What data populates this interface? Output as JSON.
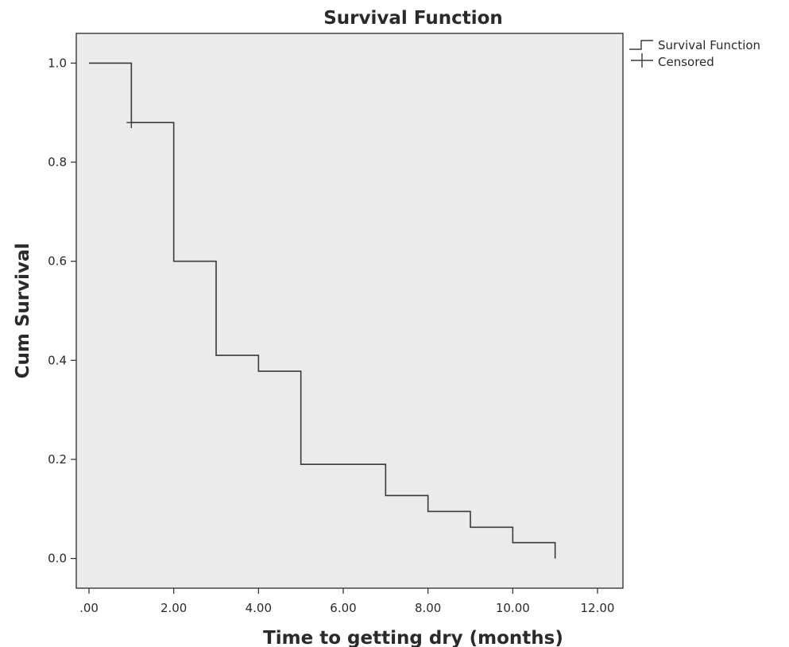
{
  "chart_data": {
    "type": "line",
    "title": "Survival Function",
    "xlabel": "Time to getting dry (months)",
    "ylabel": "Cum Survival",
    "xlim": [
      -0.3,
      12.6
    ],
    "ylim": [
      -0.06,
      1.06
    ],
    "x_ticks": [
      0,
      2,
      4,
      6,
      8,
      10,
      12
    ],
    "x_tick_labels": [
      ".00",
      "2.00",
      "4.00",
      "6.00",
      "8.00",
      "10.00",
      "12.00"
    ],
    "y_ticks": [
      0.0,
      0.2,
      0.4,
      0.6,
      0.8,
      1.0
    ],
    "y_tick_labels": [
      "0.0",
      "0.2",
      "0.4",
      "0.6",
      "0.8",
      "1.0"
    ],
    "grid": false,
    "legend_position": "top-right",
    "series": [
      {
        "name": "Survival Function",
        "style": "step",
        "points": [
          {
            "x": 0,
            "y": 1.0
          },
          {
            "x": 1,
            "y": 0.88
          },
          {
            "x": 2,
            "y": 0.6
          },
          {
            "x": 3,
            "y": 0.41
          },
          {
            "x": 4,
            "y": 0.378
          },
          {
            "x": 5,
            "y": 0.19
          },
          {
            "x": 7,
            "y": 0.127
          },
          {
            "x": 8,
            "y": 0.095
          },
          {
            "x": 9,
            "y": 0.063
          },
          {
            "x": 10,
            "y": 0.032
          },
          {
            "x": 11,
            "y": 0.0
          }
        ]
      },
      {
        "name": "Censored",
        "style": "marker-plus",
        "points": [
          {
            "x": 1,
            "y": 0.88
          }
        ]
      }
    ],
    "colors": {
      "plot_background": "#ebebeb",
      "line": "#3a3a3a",
      "frame": "#2a2a2a"
    }
  }
}
